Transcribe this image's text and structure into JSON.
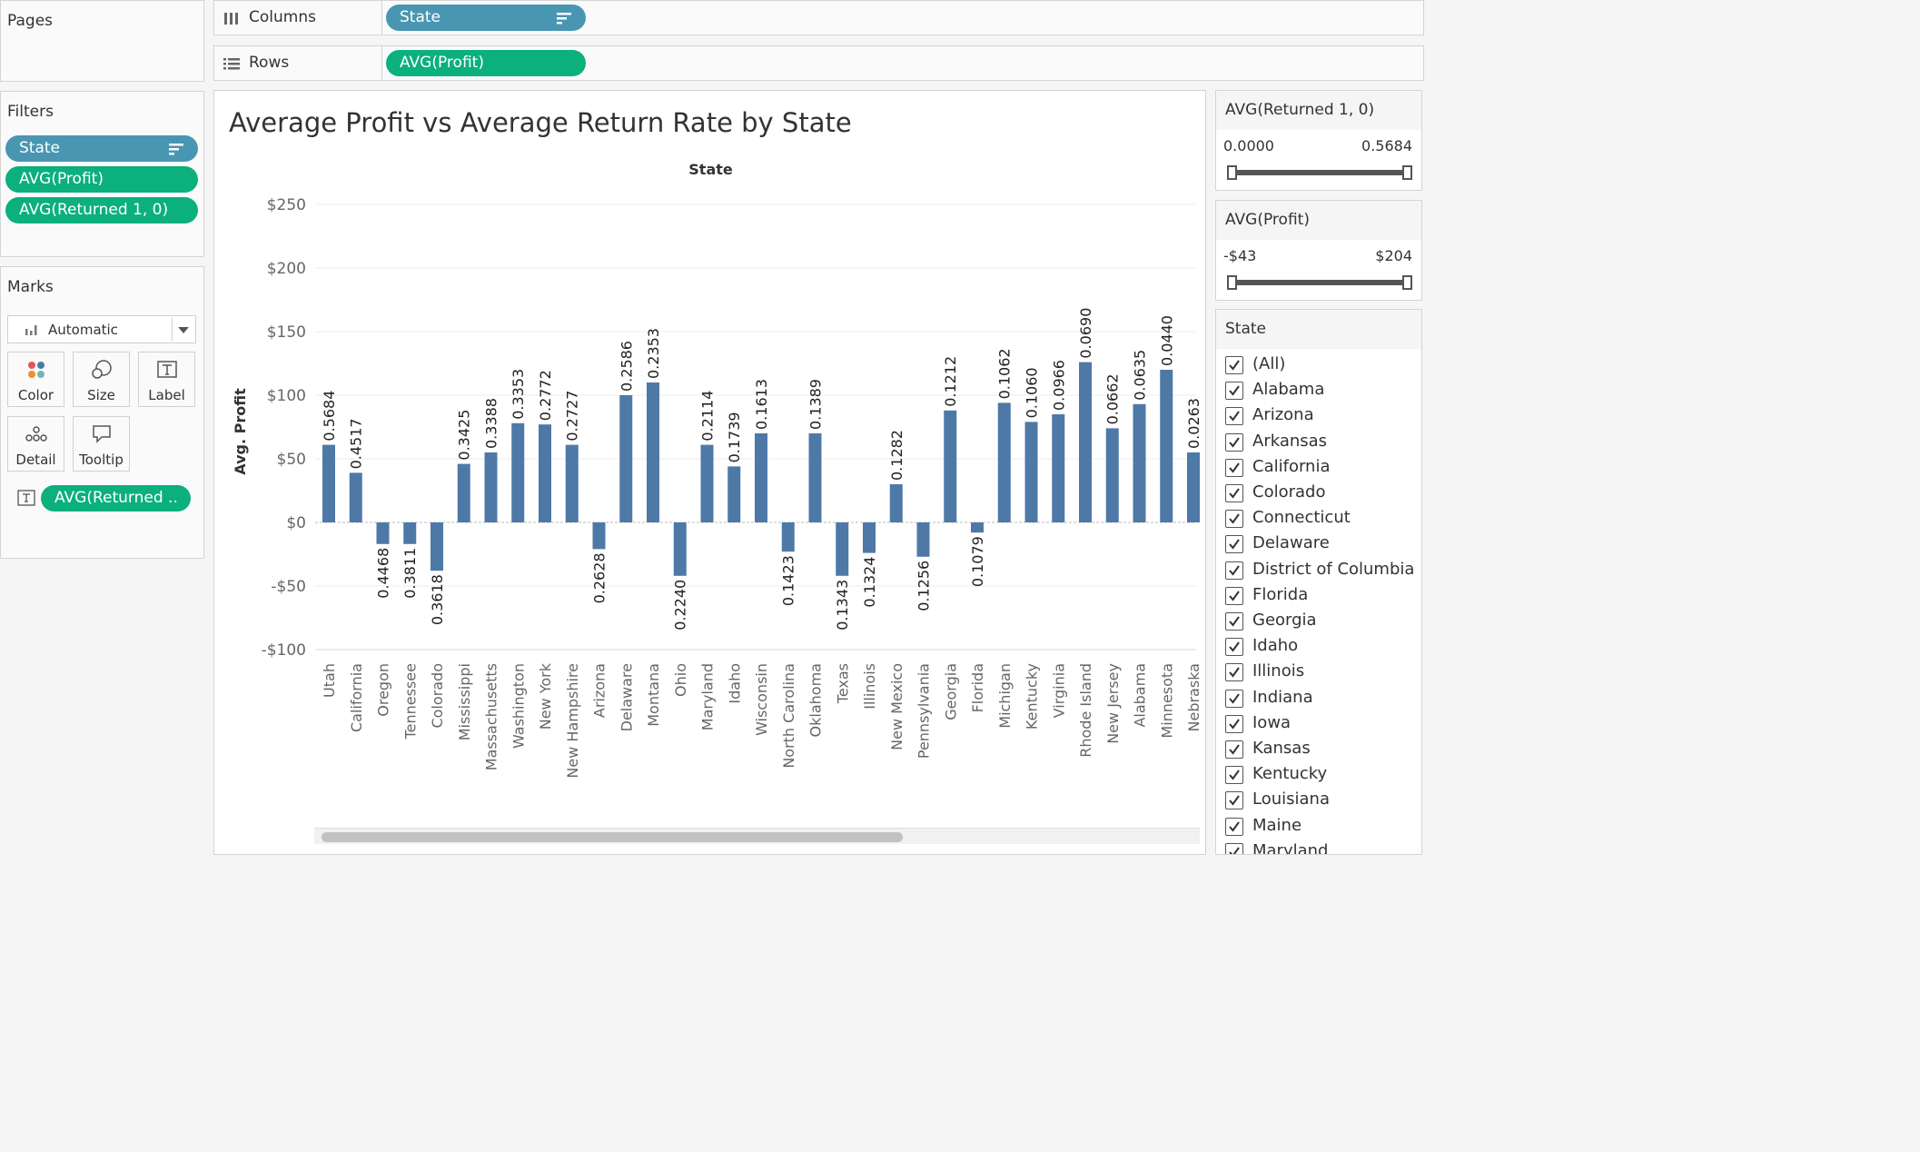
{
  "shelves": {
    "pages_label": "Pages",
    "columns_label": "Columns",
    "columns_pill": "State",
    "rows_label": "Rows",
    "rows_pill": "AVG(Profit)"
  },
  "filters": {
    "title": "Filters",
    "items": [
      "State",
      "AVG(Profit)",
      "AVG(Returned 1, 0)"
    ]
  },
  "marks": {
    "title": "Marks",
    "type": "Automatic",
    "buttons": [
      "Color",
      "Size",
      "Label",
      "Detail",
      "Tooltip"
    ],
    "label_pill": "AVG(Returned .."
  },
  "returned_filter": {
    "title": "AVG(Returned 1, 0)",
    "min": "0.0000",
    "max": "0.5684"
  },
  "profit_filter": {
    "title": "AVG(Profit)",
    "min": "-$43",
    "max": "$204"
  },
  "state_filter": {
    "title": "State",
    "items": [
      "(All)",
      "Alabama",
      "Arizona",
      "Arkansas",
      "California",
      "Colorado",
      "Connecticut",
      "Delaware",
      "District of Columbia",
      "Florida",
      "Georgia",
      "Idaho",
      "Illinois",
      "Indiana",
      "Iowa",
      "Kansas",
      "Kentucky",
      "Louisiana",
      "Maine",
      "Maryland"
    ]
  },
  "colors": {
    "bar": "#4e79a7",
    "blue_pill": "#4996b2",
    "green_pill": "#0bb07c"
  },
  "chart_data": {
    "type": "bar",
    "title": "Average Profit vs Average Return Rate by State",
    "column_header": "State",
    "ylabel": "Avg. Profit",
    "ylim": [
      -100,
      250
    ],
    "yticks": [
      250,
      200,
      150,
      100,
      50,
      0,
      -50,
      -100
    ],
    "ytick_labels": [
      "$250",
      "$200",
      "$150",
      "$100",
      "$50",
      "$0",
      "-$50",
      "-$100"
    ],
    "categories": [
      "Utah",
      "California",
      "Oregon",
      "Tennessee",
      "Colorado",
      "Mississippi",
      "Massachusetts",
      "Washington",
      "New York",
      "New Hampshire",
      "Arizona",
      "Delaware",
      "Montana",
      "Ohio",
      "Maryland",
      "Idaho",
      "Wisconsin",
      "North Carolina",
      "Oklahoma",
      "Texas",
      "Illinois",
      "New Mexico",
      "Pennsylvania",
      "Georgia",
      "Florida",
      "Michigan",
      "Kentucky",
      "Virginia",
      "Rhode Island",
      "New Jersey",
      "Alabama",
      "Minnesota",
      "Nebraska"
    ],
    "values": [
      61,
      39,
      -17,
      -17,
      -38,
      46,
      55,
      78,
      77,
      61,
      -21,
      100,
      110,
      -42,
      61,
      44,
      70,
      -23,
      70,
      -42,
      -24,
      30,
      -27,
      88,
      -8,
      94,
      79,
      85,
      126,
      74,
      93,
      120,
      55
    ],
    "data_labels": [
      "0.5684",
      "0.4517",
      "0.4468",
      "0.3811",
      "0.3618",
      "0.3425",
      "0.3388",
      "0.3353",
      "0.2772",
      "0.2727",
      "0.2628",
      "0.2586",
      "0.2353",
      "0.2240",
      "0.2114",
      "0.1739",
      "0.1613",
      "0.1423",
      "0.1389",
      "0.1343",
      "0.1324",
      "0.1282",
      "0.1256",
      "0.1212",
      "0.1079",
      "0.1062",
      "0.1060",
      "0.0966",
      "0.0690",
      "0.0662",
      "0.0635",
      "0.0440",
      "0.0263"
    ],
    "grid": true,
    "legend": "none"
  }
}
